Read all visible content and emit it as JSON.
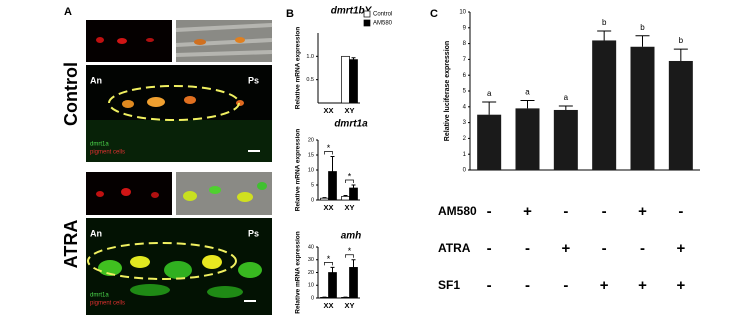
{
  "panels": {
    "a": "A",
    "b": "B",
    "c": "C"
  },
  "images": {
    "control": "Control",
    "atra": "ATRA",
    "control_an": "An",
    "control_ps": "Ps",
    "control_gene": "dmrt1a",
    "control_cells": "pigment cells",
    "atra_an": "An",
    "atra_ps": "Ps",
    "atra_gene": "dmrt1a",
    "atra_cells": "pigment cells"
  },
  "chart_data": [
    {
      "type": "bar",
      "title": "dmrt1bY",
      "y_label": "Relative mRNA expression",
      "categories": [
        "XX",
        "XY"
      ],
      "series": [
        {
          "name": "Control",
          "color": "#ffffff",
          "values": [
            0,
            1.0
          ],
          "errors": [
            0,
            0
          ]
        },
        {
          "name": "AM580",
          "color": "#000000",
          "values": [
            0,
            0.93
          ],
          "errors": [
            0,
            0.04
          ]
        }
      ],
      "ylim": [
        0,
        1.5
      ],
      "yticks": [
        0.5,
        {
          "value": 1,
          "label": "1.0"
        }
      ]
    },
    {
      "type": "bar",
      "title": "dmrt1a",
      "y_label": "Relative mRNA expression",
      "categories": [
        "XX",
        "XY"
      ],
      "series": [
        {
          "color": "#ffffff",
          "values": [
            0.6,
            1.2
          ],
          "errors": [
            0.2,
            0.3
          ]
        },
        {
          "color": "#000000",
          "values": [
            9.5,
            4.0
          ],
          "errors": [
            5.0,
            1.0
          ]
        }
      ],
      "significance": [
        "*",
        "*"
      ],
      "ylim": [
        0,
        20
      ],
      "yticks": [
        0,
        5,
        10,
        15,
        20
      ]
    },
    {
      "type": "bar",
      "title": "amh",
      "y_label": "Relative mRNA expression",
      "categories": [
        "XX",
        "XY"
      ],
      "series": [
        {
          "color": "#ffffff",
          "values": [
            0.5,
            0.5
          ],
          "errors": [
            0.2,
            0.2
          ]
        },
        {
          "color": "#000000",
          "values": [
            20,
            24
          ],
          "errors": [
            4,
            6
          ]
        }
      ],
      "significance": [
        "*",
        "*"
      ],
      "ylim": [
        0,
        40
      ],
      "yticks": [
        0,
        10,
        20,
        30,
        40
      ]
    },
    {
      "type": "bar",
      "y_label": "Relative luciferase expression",
      "color": "#1a1a1a",
      "values": [
        3.5,
        3.9,
        3.8,
        8.2,
        7.8,
        6.9
      ],
      "errors": [
        0.8,
        0.5,
        0.25,
        0.6,
        0.7,
        0.75
      ],
      "letters": [
        "a",
        "a",
        "a",
        "b",
        "b",
        "b"
      ],
      "ylim": [
        0,
        10
      ],
      "yticks": [
        0,
        1,
        2,
        3,
        4,
        5,
        6,
        7,
        8,
        9,
        10
      ],
      "treatments": [
        {
          "name": "AM580",
          "signs": [
            "-",
            "+",
            "-",
            "-",
            "+",
            "-"
          ]
        },
        {
          "name": "ATRA",
          "signs": [
            "-",
            "-",
            "+",
            "-",
            "-",
            "+"
          ]
        },
        {
          "name": "SF1",
          "signs": [
            "-",
            "-",
            "-",
            "+",
            "+",
            "+"
          ]
        }
      ]
    }
  ]
}
